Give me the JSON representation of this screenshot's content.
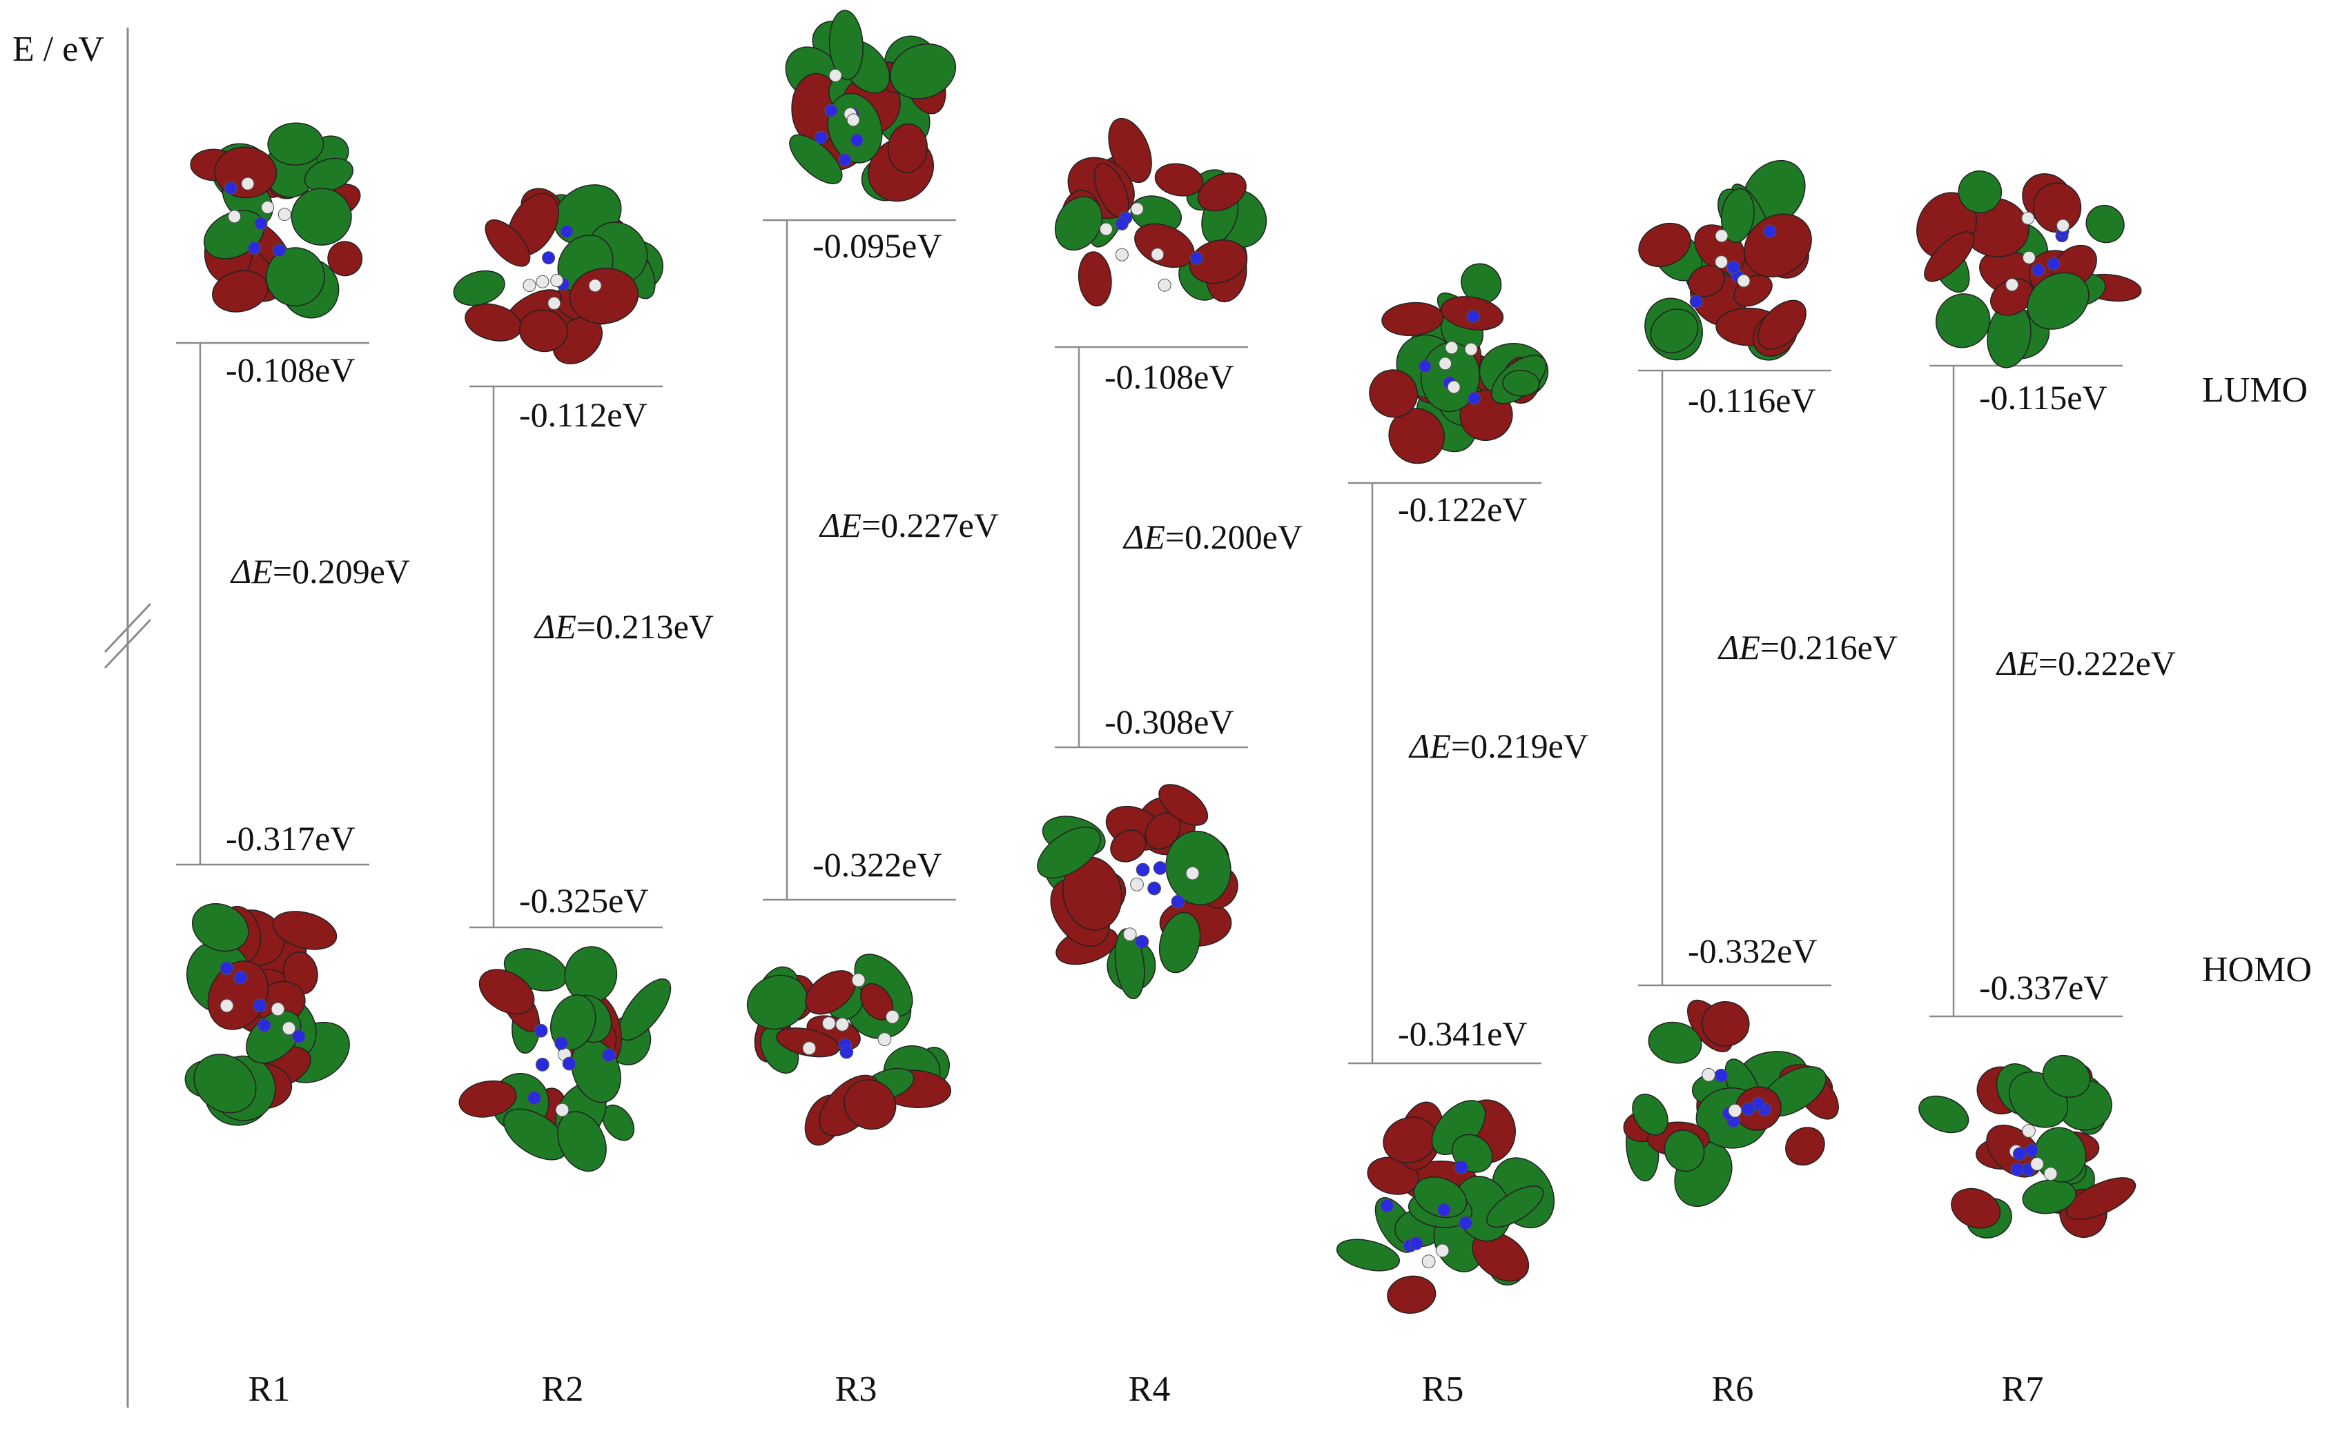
{
  "axis": {
    "label": "E / eV"
  },
  "side_labels": {
    "lumo": "LUMO",
    "homo": "HOMO"
  },
  "colors": {
    "lobe_red": "#8b1a1a",
    "lobe_green": "#1f7a25",
    "atom_blue": "#2a2adf",
    "atom_white": "#e8e8e8",
    "line": "#8a8a8a"
  },
  "systems": [
    {
      "name": "R1",
      "lumo": "-0.108eV",
      "homo": "-0.317eV",
      "gap_symbol": "ΔE",
      "gap_value": "=0.209eV"
    },
    {
      "name": "R2",
      "lumo": "-0.112eV",
      "homo": "-0.325eV",
      "gap_symbol": "ΔE",
      "gap_value": "=0.213eV"
    },
    {
      "name": "R3",
      "lumo": "-0.095eV",
      "homo": "-0.322eV",
      "gap_symbol": "ΔE",
      "gap_value": "=0.227eV"
    },
    {
      "name": "R4",
      "lumo": "-0.108eV",
      "homo": "-0.308eV",
      "gap_symbol": "ΔE",
      "gap_value": "=0.200eV"
    },
    {
      "name": "R5",
      "lumo": "-0.122eV",
      "homo": "-0.341eV",
      "gap_symbol": "ΔE",
      "gap_value": "=0.219eV"
    },
    {
      "name": "R6",
      "lumo": "-0.116eV",
      "homo": "-0.332eV",
      "gap_symbol": "ΔE",
      "gap_value": "=0.216eV"
    },
    {
      "name": "R7",
      "lumo": "-0.115eV",
      "homo": "-0.337eV",
      "gap_symbol": "ΔE",
      "gap_value": "=0.222eV"
    }
  ]
}
